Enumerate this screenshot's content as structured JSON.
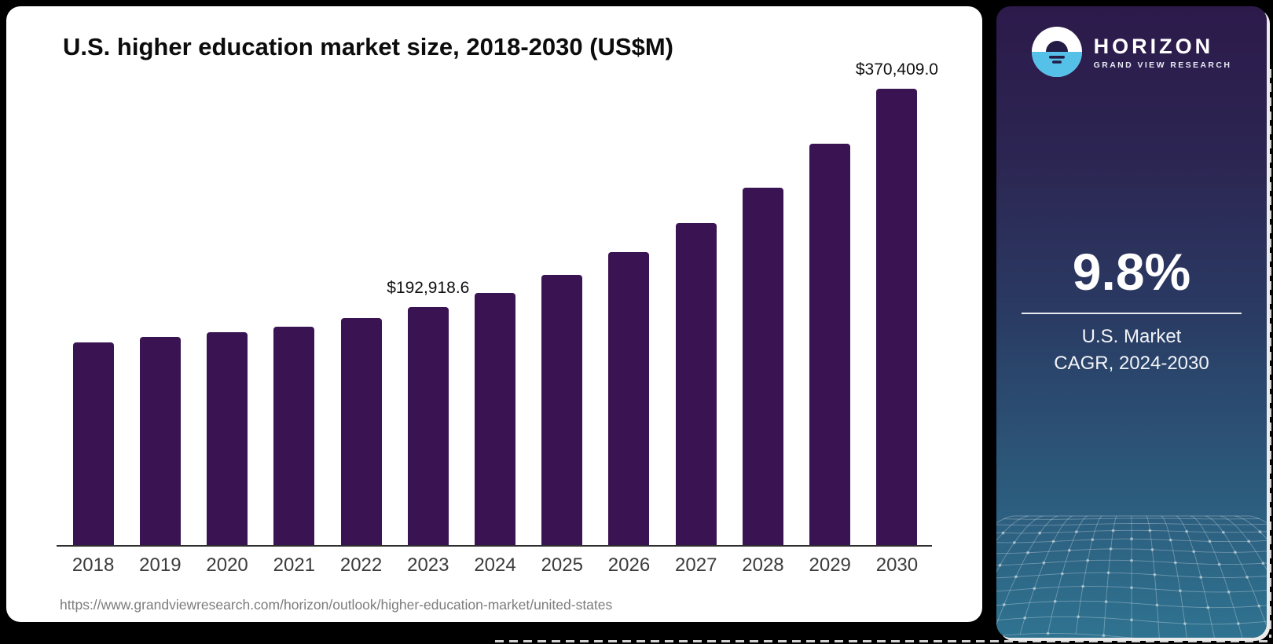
{
  "chart": {
    "title": "U.S. higher education market size, 2018-2030 (US$M)",
    "source_url": "https://www.grandviewresearch.com/horizon/outlook/higher-education-market/united-states"
  },
  "chart_data": {
    "type": "bar",
    "title": "U.S. higher education market size, 2018-2030 (US$M)",
    "unit": "US$M",
    "categories": [
      "2018",
      "2019",
      "2020",
      "2021",
      "2022",
      "2023",
      "2024",
      "2025",
      "2026",
      "2027",
      "2028",
      "2029",
      "2030"
    ],
    "values": [
      164500,
      168900,
      172800,
      177200,
      184200,
      192918.6,
      204600,
      219300,
      237800,
      261400,
      290100,
      325800,
      370409.0
    ],
    "value_labels": [
      {
        "category": "2023",
        "label": "$192,918.6"
      },
      {
        "category": "2030",
        "label": "$370,409.0"
      }
    ],
    "bar_color": "#3a1452",
    "xlabel": "",
    "ylabel": "",
    "ylim": [
      0,
      380000
    ],
    "grid": false,
    "legend": "none"
  },
  "sidebar": {
    "brand": {
      "name": "HORIZON",
      "subtitle": "GRAND VIEW RESEARCH"
    },
    "stat": {
      "value": "9.8%",
      "line1": "U.S. Market",
      "line2": "CAGR, 2024-2030"
    },
    "colors": {
      "gradient_top": "#2c1a4b",
      "gradient_mid": "#2a3c64",
      "gradient_bottom": "#2f7390",
      "logo_blue": "#55c0e8",
      "logo_dark": "#241c44"
    }
  }
}
